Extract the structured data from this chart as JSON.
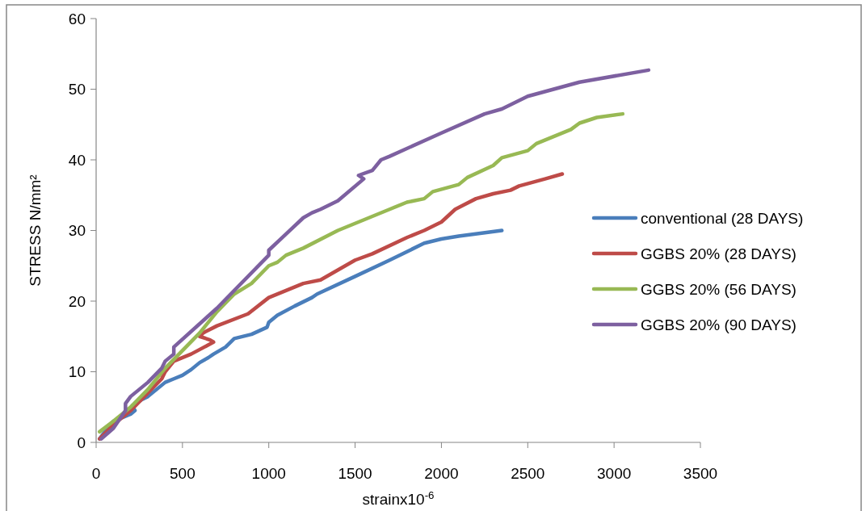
{
  "chart_data": {
    "type": "line",
    "xlabel": "strainx10$^{-6}$",
    "ylabel": "STRESS  N/mm²",
    "xlim": [
      0,
      3500
    ],
    "xticks": [
      0,
      500,
      1000,
      1500,
      2000,
      2500,
      3000,
      3500
    ],
    "ylim": [
      0,
      60
    ],
    "yticks": [
      0,
      10,
      20,
      30,
      40,
      50,
      60
    ],
    "grid": false,
    "legend": "right",
    "marker": "none",
    "line_style": "solid",
    "series": [
      {
        "name": "conventional (28 DAYS)",
        "color": "#4a7ebb",
        "x": [
          20,
          80,
          100,
          150,
          200,
          225,
          210,
          260,
          300,
          350,
          400,
          450,
          500,
          550,
          600,
          650,
          680,
          750,
          800,
          900,
          990,
          1000,
          1050,
          1150,
          1250,
          1280,
          1500,
          1700,
          1900,
          2000,
          2100,
          2350
        ],
        "values": [
          0.5,
          2.5,
          3,
          3.5,
          4,
          4.5,
          5.2,
          6,
          6.5,
          7.5,
          8.5,
          9,
          9.5,
          10.3,
          11.3,
          12,
          12.5,
          13.5,
          14.7,
          15.3,
          16.3,
          17,
          18,
          19.3,
          20.5,
          21,
          23.5,
          25.8,
          28.2,
          28.8,
          29.2,
          30
        ]
      },
      {
        "name": "GGBS 20% (28 DAYS)",
        "color": "#be4b48",
        "x": [
          20,
          100,
          200,
          300,
          380,
          400,
          450,
          550,
          650,
          680,
          660,
          600,
          620,
          700,
          880,
          1000,
          1100,
          1200,
          1300,
          1500,
          1600,
          1800,
          1900,
          2000,
          2080,
          2200,
          2300,
          2400,
          2450,
          2600,
          2700
        ],
        "values": [
          0.5,
          2.5,
          4.5,
          7,
          9,
          10,
          11.5,
          12.5,
          13.8,
          14.2,
          14.5,
          15,
          15.5,
          16.5,
          18.2,
          20.5,
          21.5,
          22.5,
          23,
          25.8,
          26.7,
          29,
          30,
          31.2,
          33,
          34.5,
          35.2,
          35.7,
          36.3,
          37.3,
          38
        ]
      },
      {
        "name": "GGBS 20% (56 DAYS)",
        "color": "#98b954",
        "x": [
          20,
          100,
          200,
          300,
          400,
          600,
          700,
          800,
          900,
          1000,
          1050,
          1100,
          1200,
          1400,
          1500,
          1600,
          1700,
          1800,
          1900,
          1950,
          2100,
          2150,
          2300,
          2350,
          2500,
          2550,
          2650,
          2750,
          2800,
          2900,
          3050
        ],
        "values": [
          1.5,
          3,
          5,
          7.5,
          10.5,
          15.5,
          18.5,
          21,
          22.5,
          25,
          25.5,
          26.5,
          27.5,
          30,
          31,
          32,
          33,
          34,
          34.5,
          35.5,
          36.5,
          37.5,
          39.2,
          40.3,
          41.3,
          42.3,
          43.3,
          44.3,
          45.2,
          46,
          46.5
        ]
      },
      {
        "name": "GGBS 20% (90 DAYS)",
        "color": "#7d60a0",
        "x": [
          30,
          100,
          170,
          170,
          200,
          300,
          380,
          400,
          450,
          450,
          700,
          1000,
          1000,
          1100,
          1200,
          1250,
          1300,
          1400,
          1550,
          1520,
          1600,
          1650,
          1700,
          2000,
          2250,
          2350,
          2500,
          2650,
          2800,
          3200
        ],
        "values": [
          0.5,
          2,
          4.5,
          5.5,
          6.5,
          8.5,
          10.5,
          11.5,
          12.5,
          13.5,
          19,
          26.5,
          27.2,
          29.5,
          31.8,
          32.5,
          33,
          34.2,
          37.3,
          37.8,
          38.5,
          40,
          40.5,
          43.8,
          46.5,
          47.2,
          49,
          50,
          51,
          52.7
        ]
      }
    ]
  }
}
